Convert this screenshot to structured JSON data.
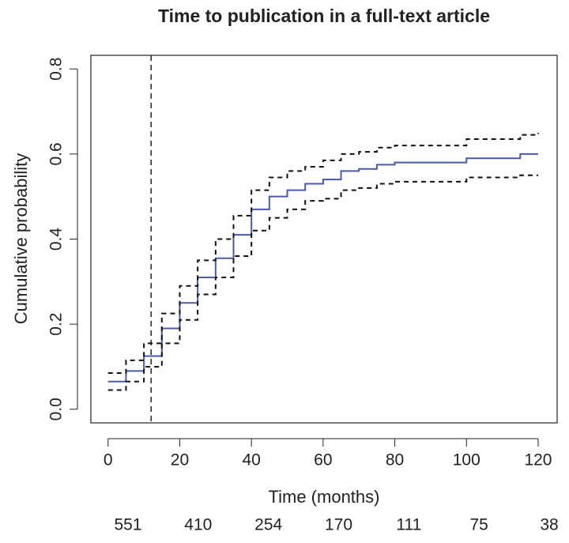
{
  "chart_data": {
    "type": "step",
    "title": "Time to publication in a full-text article",
    "x_label": "Time (months)",
    "y_label": "Cumulative probability",
    "x": [
      0,
      5,
      10,
      15,
      20,
      25,
      30,
      35,
      40,
      45,
      50,
      55,
      60,
      65,
      70,
      75,
      80,
      90,
      100,
      110,
      115,
      120
    ],
    "series": [
      {
        "name": "Estimate",
        "color": "#4a5aa8",
        "dashed": false,
        "values": [
          0.065,
          0.09,
          0.125,
          0.19,
          0.25,
          0.31,
          0.355,
          0.41,
          0.47,
          0.5,
          0.515,
          0.53,
          0.54,
          0.56,
          0.565,
          0.575,
          0.58,
          0.58,
          0.59,
          0.59,
          0.6,
          0.6
        ]
      },
      {
        "name": "Lower bound",
        "color": "#111111",
        "dashed": true,
        "values": [
          0.045,
          0.065,
          0.1,
          0.155,
          0.21,
          0.27,
          0.31,
          0.36,
          0.42,
          0.45,
          0.47,
          0.49,
          0.495,
          0.515,
          0.52,
          0.53,
          0.535,
          0.535,
          0.545,
          0.545,
          0.55,
          0.55
        ]
      },
      {
        "name": "Upper bound",
        "color": "#111111",
        "dashed": true,
        "values": [
          0.085,
          0.115,
          0.155,
          0.225,
          0.29,
          0.35,
          0.4,
          0.455,
          0.515,
          0.545,
          0.56,
          0.57,
          0.585,
          0.6,
          0.605,
          0.615,
          0.62,
          0.62,
          0.635,
          0.635,
          0.645,
          0.65
        ]
      }
    ],
    "vline": 12,
    "xlim": [
      -4.8,
      125.3
    ],
    "ylim": [
      -0.032,
      0.832
    ],
    "xticks": [
      0,
      20,
      40,
      60,
      80,
      100,
      120
    ],
    "yticks": [
      {
        "value": 0,
        "label": "0.0"
      },
      {
        "value": 0.2,
        "label": "0.2"
      },
      {
        "value": 0.4,
        "label": "0.4"
      },
      {
        "value": 0.6,
        "label": "0.6"
      },
      {
        "value": 0.8,
        "label": "0.8"
      }
    ],
    "at_risk": [
      "551",
      "410",
      "254",
      "170",
      "111",
      "75",
      "38"
    ]
  }
}
